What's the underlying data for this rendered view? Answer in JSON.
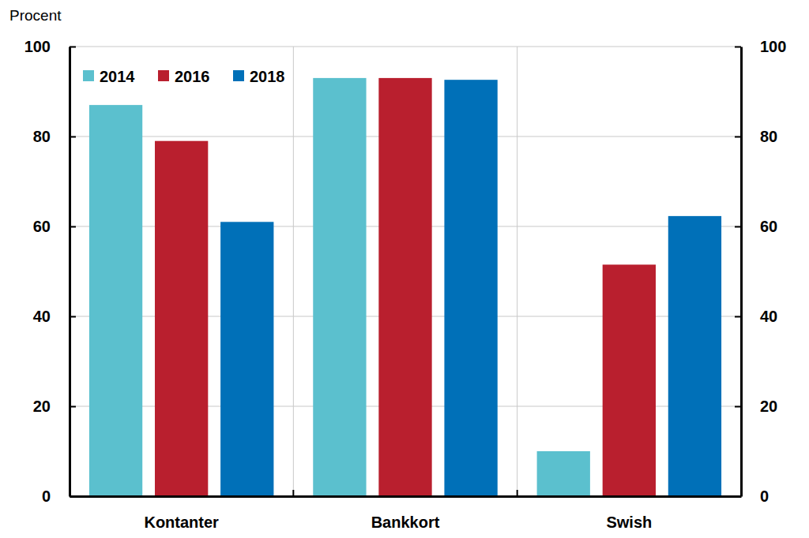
{
  "chart_data": {
    "type": "bar",
    "y_label": "Procent",
    "categories": [
      "Kontanter",
      "Bankkort",
      "Swish"
    ],
    "series": [
      {
        "name": "2014",
        "color": "#5bc0ce",
        "values": [
          87,
          93,
          10
        ]
      },
      {
        "name": "2016",
        "color": "#b91f2e",
        "values": [
          79,
          93,
          51.5
        ]
      },
      {
        "name": "2018",
        "color": "#0070b8",
        "values": [
          61,
          92.6,
          62.3
        ]
      }
    ],
    "ylim": [
      0,
      100
    ],
    "yticks": [
      0,
      20,
      40,
      60,
      80,
      100
    ],
    "grid": true,
    "legend": "upper left"
  }
}
